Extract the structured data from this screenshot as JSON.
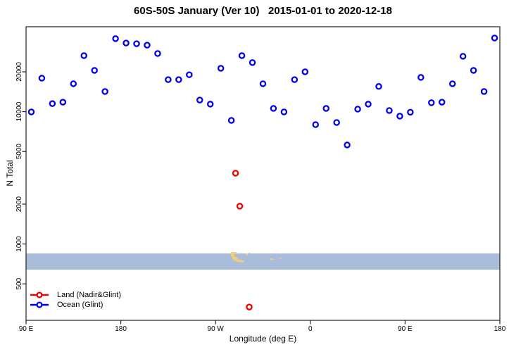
{
  "chart_data": {
    "type": "scatter",
    "title": "60S-50S January (Ver 10)   2015-01-01 to 2020-12-18",
    "xlabel": "Longitude (deg E)",
    "ylabel": "N Total",
    "x_axis": {
      "unit": "deg E",
      "span_deg": 450,
      "ticks": [
        {
          "pos": 0,
          "label": "90 E"
        },
        {
          "pos": 90,
          "label": "180"
        },
        {
          "pos": 180,
          "label": "90 W"
        },
        {
          "pos": 270,
          "label": "0"
        },
        {
          "pos": 360,
          "label": "90 E"
        },
        {
          "pos": 450,
          "label": "180"
        }
      ]
    },
    "y_axis": {
      "scale": "log",
      "range": [
        265,
        43800
      ],
      "ticks": [
        {
          "value": 500,
          "label": "500"
        },
        {
          "value": 1000,
          "label": "1000"
        },
        {
          "value": 2000,
          "label": "2000"
        },
        {
          "value": 5000,
          "label": "5000"
        },
        {
          "value": 10000,
          "label": "10000"
        },
        {
          "value": 20000,
          "label": "20000"
        }
      ]
    },
    "legend_position": "bottom-left",
    "grid": false,
    "series": [
      {
        "name": "Land (Nadir&Glint)",
        "color": "#ee0000",
        "points": [
          [
            199,
            3430
          ],
          [
            203,
            1930
          ],
          [
            212,
            334
          ]
        ]
      },
      {
        "name": "Ocean (Glint)",
        "color": "#0000ee",
        "points": [
          [
            5,
            9950
          ],
          [
            15,
            17900
          ],
          [
            25,
            11500
          ],
          [
            35,
            11800
          ],
          [
            45,
            16250
          ],
          [
            55,
            26500
          ],
          [
            65,
            20500
          ],
          [
            75,
            14200
          ],
          [
            85,
            35600
          ],
          [
            95,
            33000
          ],
          [
            105,
            32600
          ],
          [
            115,
            31800
          ],
          [
            125,
            27500
          ],
          [
            135,
            17460
          ],
          [
            145,
            17460
          ],
          [
            155,
            19000
          ],
          [
            165,
            12240
          ],
          [
            175,
            11400
          ],
          [
            185,
            21270
          ],
          [
            195,
            8590
          ],
          [
            205,
            26500
          ],
          [
            215,
            23500
          ],
          [
            225,
            16250
          ],
          [
            235,
            10580
          ],
          [
            245,
            9950
          ],
          [
            255,
            17460
          ],
          [
            265,
            20000
          ],
          [
            275,
            7980
          ],
          [
            285,
            10580
          ],
          [
            295,
            8280
          ],
          [
            305,
            5600
          ],
          [
            315,
            10450
          ],
          [
            325,
            11400
          ],
          [
            335,
            15500
          ],
          [
            345,
            10200
          ],
          [
            355,
            9250
          ],
          [
            365,
            9900
          ],
          [
            375,
            18150
          ],
          [
            385,
            11680
          ],
          [
            395,
            11800
          ],
          [
            405,
            16250
          ],
          [
            415,
            26200
          ],
          [
            425,
            20500
          ],
          [
            435,
            14200
          ],
          [
            445,
            36000
          ]
        ]
      }
    ],
    "map_strip": {
      "description": "60S-50S latitude strip map band",
      "ocean_color": "#a9bcd9",
      "land_color": "#f2cd7c",
      "n_top": 849,
      "n_bottom": 640
    },
    "land_patches": {
      "polygon": [
        [
          328,
          358
        ],
        [
          335,
          358
        ],
        [
          337,
          360
        ],
        [
          334,
          361
        ],
        [
          331,
          362
        ],
        [
          334,
          363
        ],
        [
          333,
          365
        ],
        [
          337,
          365
        ],
        [
          336,
          367
        ],
        [
          339,
          367
        ],
        [
          338,
          369
        ],
        [
          342,
          369
        ],
        [
          345,
          370
        ],
        [
          347,
          371
        ],
        [
          347,
          372.5
        ],
        [
          342,
          372.5
        ],
        [
          337,
          372
        ],
        [
          333,
          370
        ],
        [
          330,
          367
        ],
        [
          328,
          363
        ]
      ],
      "rects": [
        [
          349,
          360,
          3,
          2
        ],
        [
          353,
          359,
          2,
          1.5
        ],
        [
          350,
          363,
          2,
          1
        ],
        [
          383,
          367,
          4,
          2
        ],
        [
          388,
          368,
          2,
          1
        ],
        [
          397,
          366,
          3,
          1.5
        ]
      ]
    }
  }
}
